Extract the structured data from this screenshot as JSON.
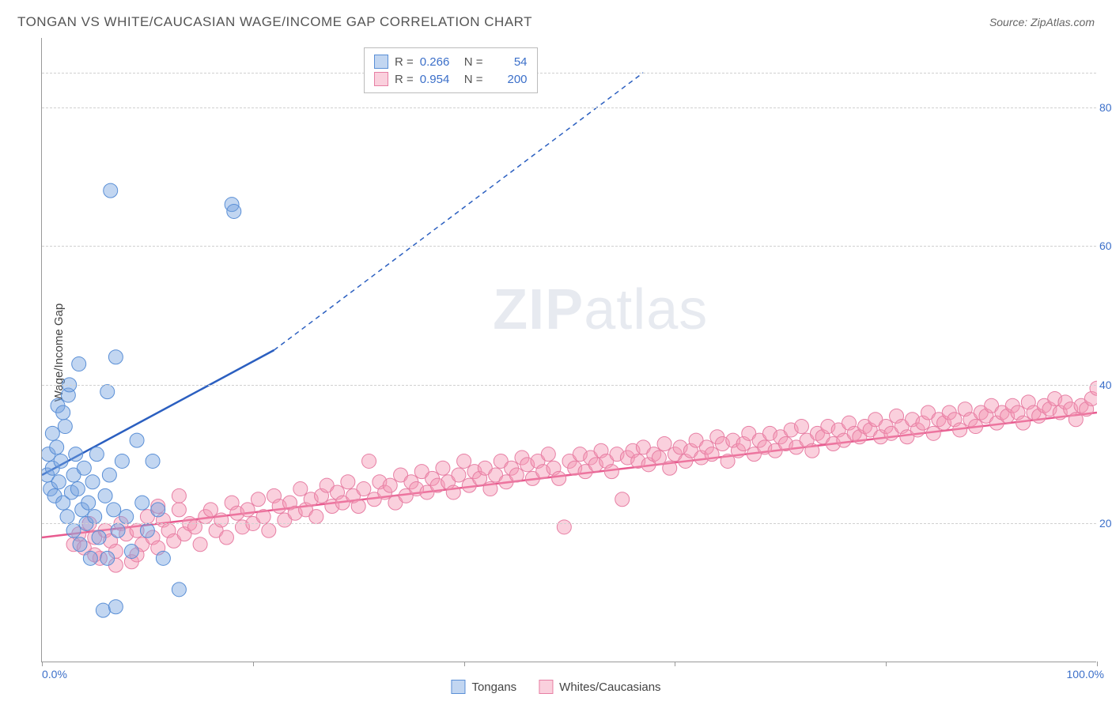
{
  "title": "TONGAN VS WHITE/CAUCASIAN WAGE/INCOME GAP CORRELATION CHART",
  "source": "Source: ZipAtlas.com",
  "ylabel": "Wage/Income Gap",
  "watermark_bold": "ZIP",
  "watermark_light": "atlas",
  "chart": {
    "type": "scatter",
    "xlim": [
      0,
      100
    ],
    "ylim": [
      0,
      90
    ],
    "ytick_values": [
      20,
      40,
      60,
      80
    ],
    "ytick_labels": [
      "20.0%",
      "40.0%",
      "60.0%",
      "80.0%"
    ],
    "xtick_values": [
      0,
      20,
      40,
      60,
      80,
      100
    ],
    "xtick_label_left": "0.0%",
    "xtick_label_right": "100.0%",
    "background": "#ffffff",
    "grid_color": "#d0d0d0",
    "axis_color": "#999999",
    "text_color_axis": "#3b6fc9"
  },
  "series": {
    "tongans": {
      "label": "Tongans",
      "marker_fill": "rgba(120,165,225,0.45)",
      "marker_stroke": "#5a8fd6",
      "line_color": "#2b5fc0",
      "marker_radius": 9,
      "R": "0.266",
      "N": "54",
      "regression": {
        "x1": 0,
        "y1": 27,
        "x2": 22,
        "y2": 45,
        "extend_x2": 57,
        "extend_y2": 85
      },
      "points": [
        [
          0.5,
          27
        ],
        [
          0.6,
          30
        ],
        [
          0.8,
          25
        ],
        [
          1,
          28
        ],
        [
          1,
          33
        ],
        [
          1.2,
          24
        ],
        [
          1.4,
          31
        ],
        [
          1.5,
          37
        ],
        [
          1.6,
          26
        ],
        [
          1.8,
          29
        ],
        [
          2,
          23
        ],
        [
          2,
          36
        ],
        [
          2.2,
          34
        ],
        [
          2.4,
          21
        ],
        [
          2.5,
          38.5
        ],
        [
          2.6,
          40
        ],
        [
          2.8,
          24.5
        ],
        [
          3,
          19
        ],
        [
          3,
          27
        ],
        [
          3.2,
          30
        ],
        [
          3.4,
          25
        ],
        [
          3.6,
          17
        ],
        [
          3.8,
          22
        ],
        [
          4,
          28
        ],
        [
          4.2,
          20
        ],
        [
          4.4,
          23
        ],
        [
          4.6,
          15
        ],
        [
          4.8,
          26
        ],
        [
          5,
          21
        ],
        [
          5.2,
          30
        ],
        [
          5.4,
          18
        ],
        [
          5.8,
          7.5
        ],
        [
          6,
          24
        ],
        [
          6.2,
          15
        ],
        [
          6.4,
          27
        ],
        [
          6.8,
          22
        ],
        [
          7,
          8
        ],
        [
          7.2,
          19
        ],
        [
          7.6,
          29
        ],
        [
          8,
          21
        ],
        [
          8.5,
          16
        ],
        [
          9,
          32
        ],
        [
          9.5,
          23
        ],
        [
          10,
          19
        ],
        [
          10.5,
          29
        ],
        [
          11,
          22
        ],
        [
          11.5,
          15
        ],
        [
          13,
          10.5
        ],
        [
          6.5,
          68
        ],
        [
          7,
          44
        ],
        [
          3.5,
          43
        ],
        [
          18,
          66
        ],
        [
          18.2,
          65
        ],
        [
          6.2,
          39
        ]
      ]
    },
    "whites": {
      "label": "Whites/Caucasians",
      "marker_fill": "rgba(245,150,180,0.45)",
      "marker_stroke": "#e77fa4",
      "line_color": "#e85a8f",
      "marker_radius": 9,
      "R": "0.954",
      "N": "200",
      "regression": {
        "x1": 0,
        "y1": 18,
        "x2": 100,
        "y2": 36
      },
      "points": [
        [
          3,
          17
        ],
        [
          4,
          16.5
        ],
        [
          5,
          18
        ],
        [
          5.5,
          15
        ],
        [
          6,
          19
        ],
        [
          6.5,
          17.5
        ],
        [
          7,
          16
        ],
        [
          7.5,
          20
        ],
        [
          8,
          18.5
        ],
        [
          8.5,
          14.5
        ],
        [
          9,
          19
        ],
        [
          9.5,
          17
        ],
        [
          10,
          21
        ],
        [
          10.5,
          18
        ],
        [
          11,
          16.5
        ],
        [
          11.5,
          20.5
        ],
        [
          12,
          19
        ],
        [
          12.5,
          17.5
        ],
        [
          13,
          22
        ],
        [
          13.5,
          18.5
        ],
        [
          14,
          20
        ],
        [
          14.5,
          19.5
        ],
        [
          15,
          17
        ],
        [
          15.5,
          21
        ],
        [
          16,
          22
        ],
        [
          16.5,
          19
        ],
        [
          17,
          20.5
        ],
        [
          17.5,
          18
        ],
        [
          18,
          23
        ],
        [
          18.5,
          21.5
        ],
        [
          19,
          19.5
        ],
        [
          19.5,
          22
        ],
        [
          20,
          20
        ],
        [
          20.5,
          23.5
        ],
        [
          21,
          21
        ],
        [
          21.5,
          19
        ],
        [
          22,
          24
        ],
        [
          22.5,
          22.5
        ],
        [
          23,
          20.5
        ],
        [
          23.5,
          23
        ],
        [
          24,
          21.5
        ],
        [
          24.5,
          25
        ],
        [
          25,
          22
        ],
        [
          25.5,
          23.5
        ],
        [
          26,
          21
        ],
        [
          26.5,
          24
        ],
        [
          27,
          25.5
        ],
        [
          27.5,
          22.5
        ],
        [
          28,
          24.5
        ],
        [
          28.5,
          23
        ],
        [
          29,
          26
        ],
        [
          29.5,
          24
        ],
        [
          30,
          22.5
        ],
        [
          30.5,
          25
        ],
        [
          31,
          29
        ],
        [
          31.5,
          23.5
        ],
        [
          32,
          26
        ],
        [
          32.5,
          24.5
        ],
        [
          33,
          25.5
        ],
        [
          33.5,
          23
        ],
        [
          34,
          27
        ],
        [
          34.5,
          24
        ],
        [
          35,
          26
        ],
        [
          35.5,
          25
        ],
        [
          36,
          27.5
        ],
        [
          36.5,
          24.5
        ],
        [
          37,
          26.5
        ],
        [
          37.5,
          25.5
        ],
        [
          38,
          28
        ],
        [
          38.5,
          26
        ],
        [
          39,
          24.5
        ],
        [
          39.5,
          27
        ],
        [
          40,
          29
        ],
        [
          40.5,
          25.5
        ],
        [
          41,
          27.5
        ],
        [
          41.5,
          26.5
        ],
        [
          42,
          28
        ],
        [
          42.5,
          25
        ],
        [
          43,
          27
        ],
        [
          43.5,
          29
        ],
        [
          44,
          26
        ],
        [
          44.5,
          28
        ],
        [
          45,
          27
        ],
        [
          45.5,
          29.5
        ],
        [
          46,
          28.5
        ],
        [
          46.5,
          26.5
        ],
        [
          47,
          29
        ],
        [
          47.5,
          27.5
        ],
        [
          48,
          30
        ],
        [
          48.5,
          28
        ],
        [
          49,
          26.5
        ],
        [
          49.5,
          19.5
        ],
        [
          50,
          29
        ],
        [
          50.5,
          28
        ],
        [
          51,
          30
        ],
        [
          51.5,
          27.5
        ],
        [
          52,
          29.5
        ],
        [
          52.5,
          28.5
        ],
        [
          53,
          30.5
        ],
        [
          53.5,
          29
        ],
        [
          54,
          27.5
        ],
        [
          54.5,
          30
        ],
        [
          55,
          23.5
        ],
        [
          55.5,
          29.5
        ],
        [
          56,
          30.5
        ],
        [
          56.5,
          29
        ],
        [
          57,
          31
        ],
        [
          57.5,
          28.5
        ],
        [
          58,
          30
        ],
        [
          58.5,
          29.5
        ],
        [
          59,
          31.5
        ],
        [
          59.5,
          28
        ],
        [
          60,
          30
        ],
        [
          60.5,
          31
        ],
        [
          61,
          29
        ],
        [
          61.5,
          30.5
        ],
        [
          62,
          32
        ],
        [
          62.5,
          29.5
        ],
        [
          63,
          31
        ],
        [
          63.5,
          30
        ],
        [
          64,
          32.5
        ],
        [
          64.5,
          31.5
        ],
        [
          65,
          29
        ],
        [
          65.5,
          32
        ],
        [
          66,
          30.5
        ],
        [
          66.5,
          31.5
        ],
        [
          67,
          33
        ],
        [
          67.5,
          30
        ],
        [
          68,
          32
        ],
        [
          68.5,
          31
        ],
        [
          69,
          33
        ],
        [
          69.5,
          30.5
        ],
        [
          70,
          32.5
        ],
        [
          70.5,
          31.5
        ],
        [
          71,
          33.5
        ],
        [
          71.5,
          31
        ],
        [
          72,
          34
        ],
        [
          72.5,
          32
        ],
        [
          73,
          30.5
        ],
        [
          73.5,
          33
        ],
        [
          74,
          32.5
        ],
        [
          74.5,
          34
        ],
        [
          75,
          31.5
        ],
        [
          75.5,
          33.5
        ],
        [
          76,
          32
        ],
        [
          76.5,
          34.5
        ],
        [
          77,
          33
        ],
        [
          77.5,
          32.5
        ],
        [
          78,
          34
        ],
        [
          78.5,
          33.5
        ],
        [
          79,
          35
        ],
        [
          79.5,
          32.5
        ],
        [
          80,
          34
        ],
        [
          80.5,
          33
        ],
        [
          81,
          35.5
        ],
        [
          81.5,
          34
        ],
        [
          82,
          32.5
        ],
        [
          82.5,
          35
        ],
        [
          83,
          33.5
        ],
        [
          83.5,
          34.5
        ],
        [
          84,
          36
        ],
        [
          84.5,
          33
        ],
        [
          85,
          35
        ],
        [
          85.5,
          34.5
        ],
        [
          86,
          36
        ],
        [
          86.5,
          35
        ],
        [
          87,
          33.5
        ],
        [
          87.5,
          36.5
        ],
        [
          88,
          35
        ],
        [
          88.5,
          34
        ],
        [
          89,
          36
        ],
        [
          89.5,
          35.5
        ],
        [
          90,
          37
        ],
        [
          90.5,
          34.5
        ],
        [
          91,
          36
        ],
        [
          91.5,
          35.5
        ],
        [
          92,
          37
        ],
        [
          92.5,
          36
        ],
        [
          93,
          34.5
        ],
        [
          93.5,
          37.5
        ],
        [
          94,
          36
        ],
        [
          94.5,
          35.5
        ],
        [
          95,
          37
        ],
        [
          95.5,
          36.5
        ],
        [
          96,
          38
        ],
        [
          96.5,
          36
        ],
        [
          97,
          37.5
        ],
        [
          97.5,
          36.5
        ],
        [
          98,
          35
        ],
        [
          98.5,
          37
        ],
        [
          99,
          36.5
        ],
        [
          99.5,
          38
        ],
        [
          100,
          39.5
        ],
        [
          5,
          15.5
        ],
        [
          7,
          14
        ],
        [
          9,
          15.5
        ],
        [
          11,
          22.5
        ],
        [
          13,
          24
        ],
        [
          3.5,
          18.5
        ],
        [
          4.5,
          20
        ]
      ]
    }
  },
  "legend_stats": {
    "r_label": "R =",
    "n_label": "N ="
  }
}
